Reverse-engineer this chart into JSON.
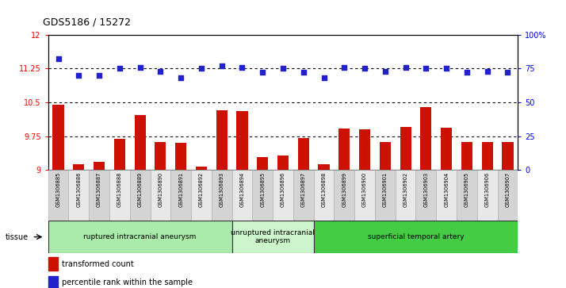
{
  "title": "GDS5186 / 15272",
  "samples": [
    "GSM1306885",
    "GSM1306886",
    "GSM1306887",
    "GSM1306888",
    "GSM1306889",
    "GSM1306890",
    "GSM1306891",
    "GSM1306892",
    "GSM1306893",
    "GSM1306894",
    "GSM1306895",
    "GSM1306896",
    "GSM1306897",
    "GSM1306898",
    "GSM1306899",
    "GSM1306900",
    "GSM1306901",
    "GSM1306902",
    "GSM1306903",
    "GSM1306904",
    "GSM1306905",
    "GSM1306906",
    "GSM1306907"
  ],
  "bar_values": [
    10.45,
    9.12,
    9.18,
    9.68,
    10.22,
    9.62,
    9.6,
    9.08,
    10.33,
    10.3,
    9.28,
    9.32,
    9.7,
    9.12,
    9.92,
    9.9,
    9.62,
    9.95,
    10.4,
    9.93,
    9.62,
    9.62,
    9.62
  ],
  "percentile_values": [
    82,
    70,
    70,
    75,
    76,
    73,
    68,
    75,
    77,
    76,
    72,
    75,
    72,
    68,
    76,
    75,
    73,
    76,
    75,
    75,
    72,
    73,
    72
  ],
  "groups": [
    {
      "label": "ruptured intracranial aneurysm",
      "start": 0,
      "end": 9,
      "color": "#aaeaaa"
    },
    {
      "label": "unruptured intracranial\naneurysm",
      "start": 9,
      "end": 13,
      "color": "#ccf5cc"
    },
    {
      "label": "superficial temporal artery",
      "start": 13,
      "end": 23,
      "color": "#44cc44"
    }
  ],
  "ylim_left": [
    9.0,
    12.0
  ],
  "ylim_right": [
    0,
    100
  ],
  "yticks_left": [
    9.0,
    9.75,
    10.5,
    11.25,
    12.0
  ],
  "ytick_labels_left": [
    "9",
    "9.75",
    "10.5",
    "11.25",
    "12"
  ],
  "yticks_right": [
    0,
    25,
    50,
    75,
    100
  ],
  "ytick_labels_right": [
    "0",
    "25",
    "50",
    "75",
    "100%"
  ],
  "hlines": [
    9.75,
    10.5,
    11.25
  ],
  "bar_color": "#cc1100",
  "dot_color": "#2222cc",
  "legend_bar_label": "transformed count",
  "legend_dot_label": "percentile rank within the sample"
}
